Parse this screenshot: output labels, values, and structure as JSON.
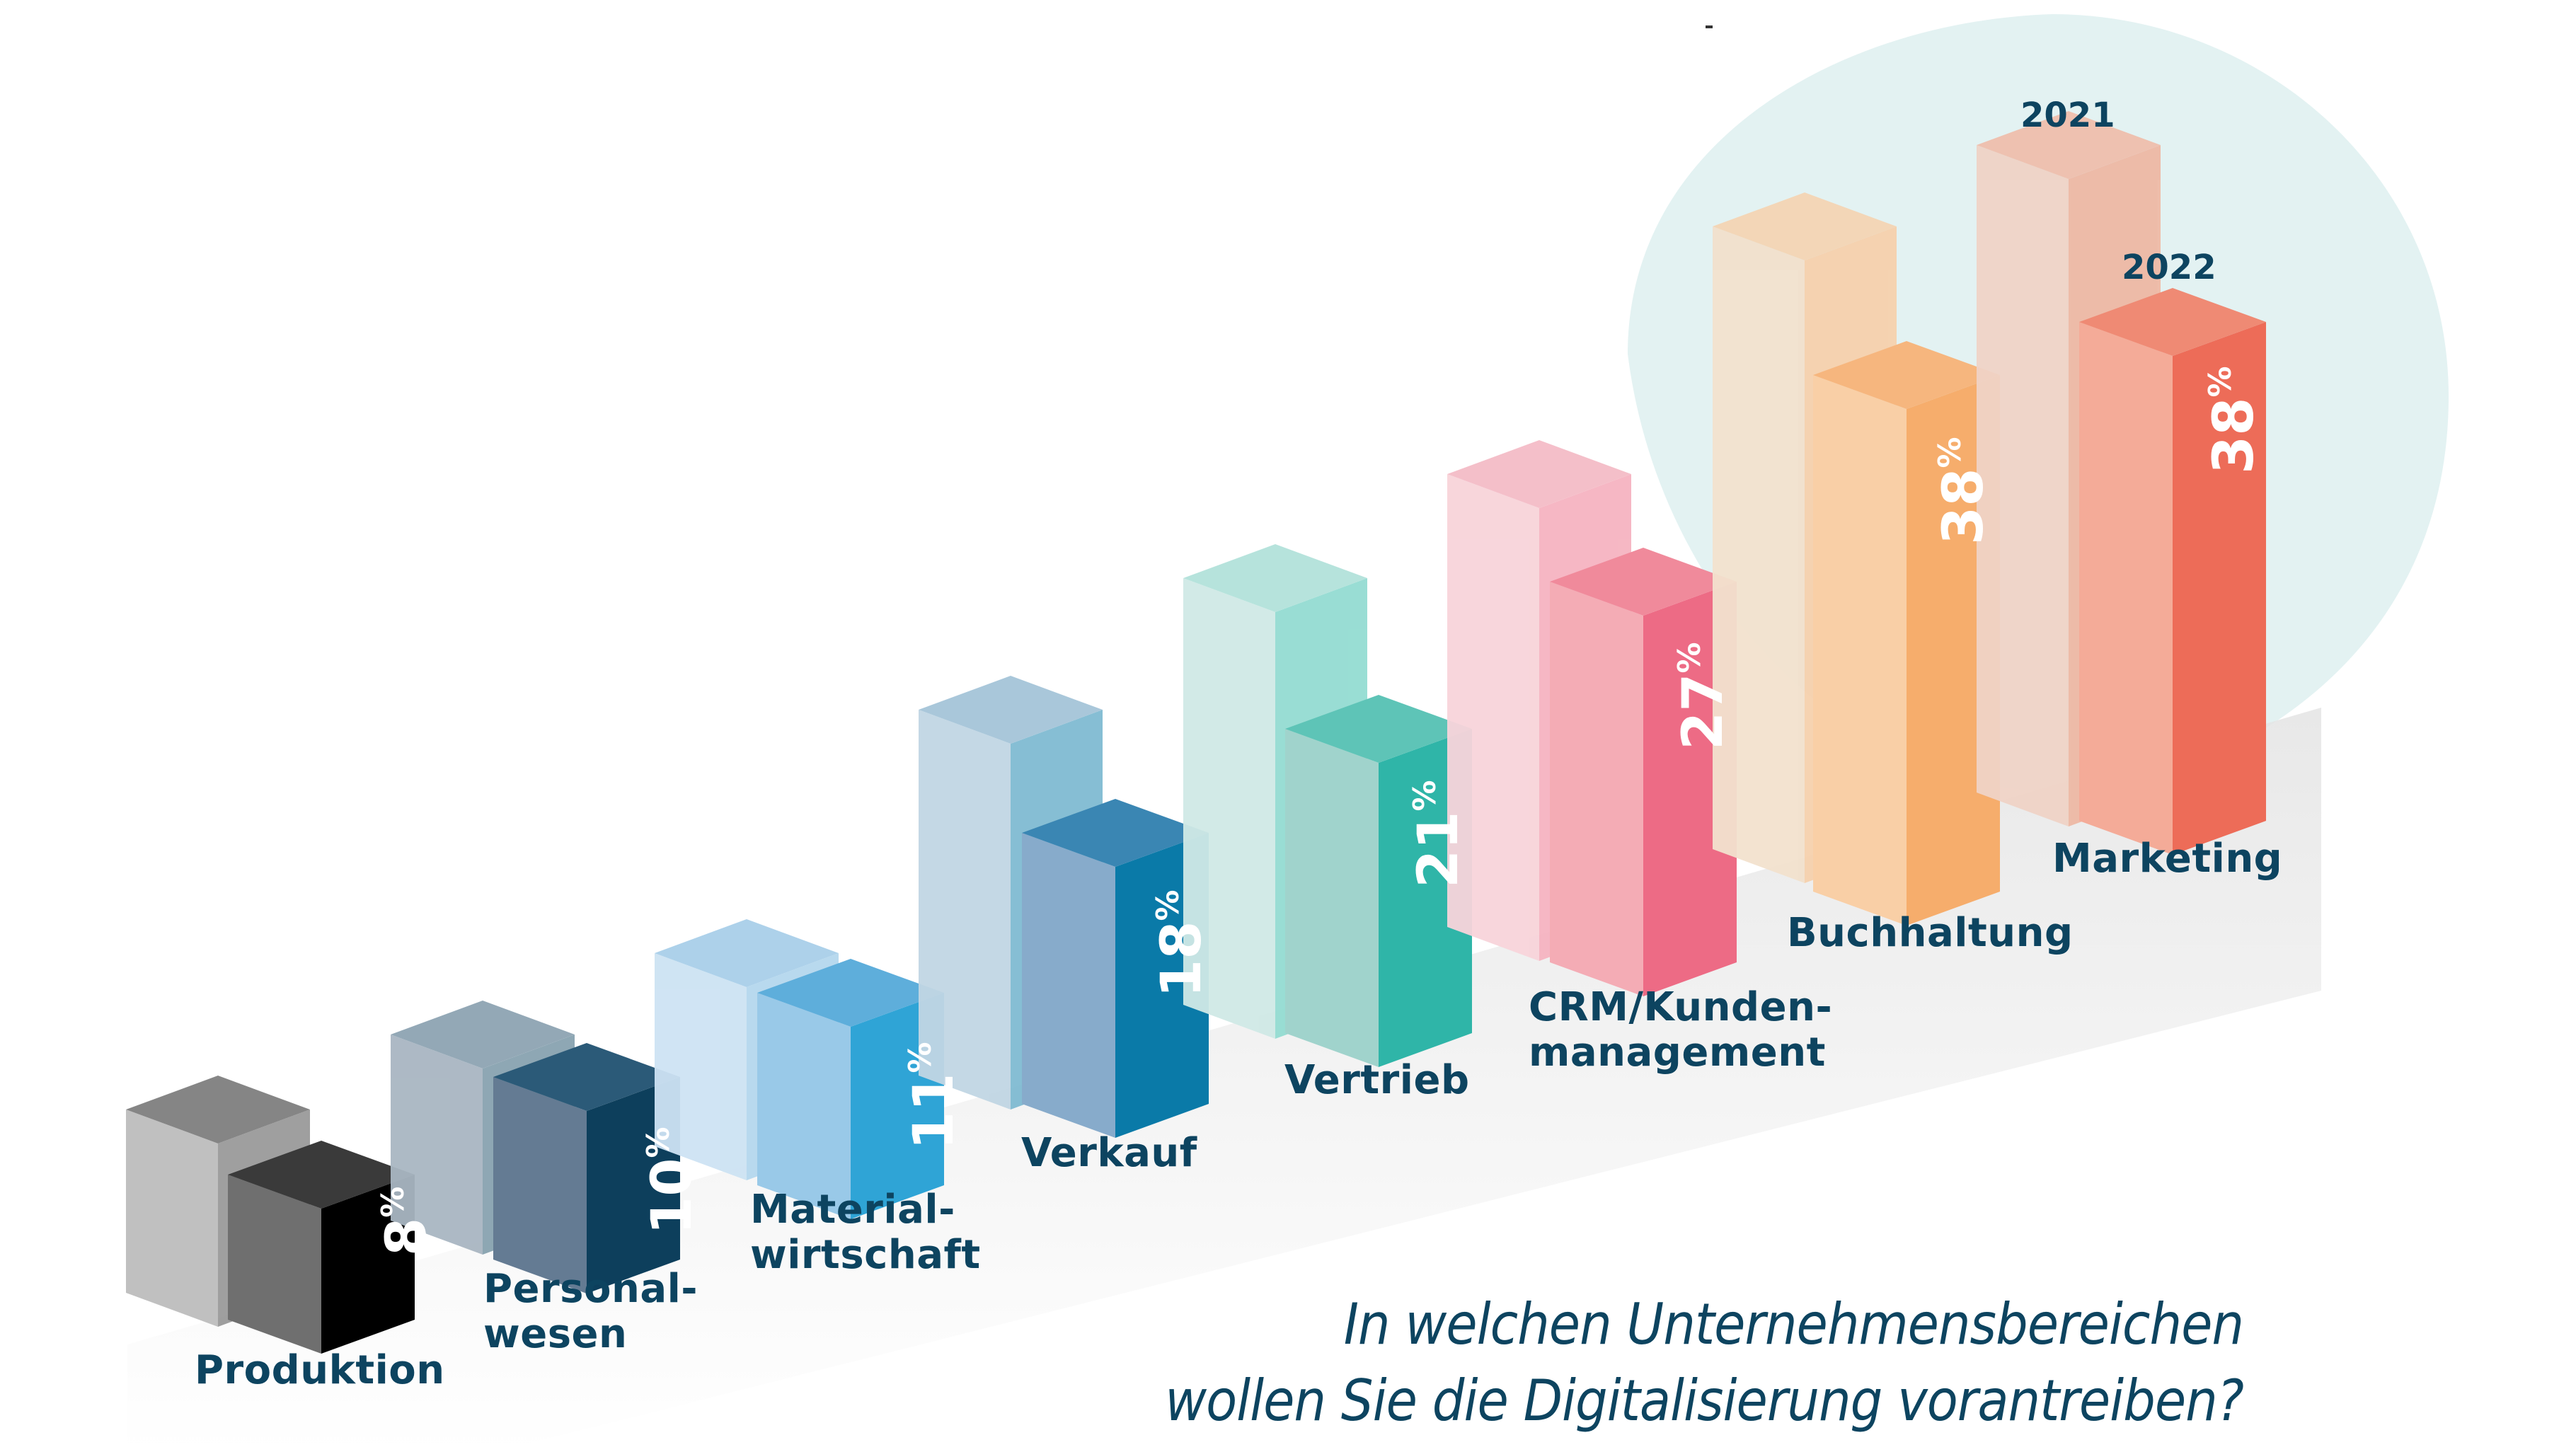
{
  "question": {
    "line1": "In welchen Unternehmensbereichen",
    "line2": "wollen Sie die Digitalisierung vorantreiben?"
  },
  "legend": {
    "year_2021": "2021",
    "year_2022": "2022"
  },
  "categories": [
    {
      "label": "Produktion",
      "value_2022": "8",
      "unit": "%",
      "color_front": "#6f6f6f",
      "color_side": "#000000",
      "color_top": "#3a3a3a",
      "ghost_front": "#bdbdbd",
      "ghost_side": "#9a9a9a",
      "ghost_top": "#7f7f7f"
    },
    {
      "label": "Personal-\nwesen",
      "value_2022": "10",
      "unit": "%",
      "color_front": "#647b93",
      "color_side": "#0d3f5c",
      "color_top": "#2b5a78",
      "ghost_front": "#a9b6c2",
      "ghost_side": "#88a3b0",
      "ghost_top": "#8ea4b3"
    },
    {
      "label": "Material-\nwirtschaft",
      "value_2022": "11",
      "unit": "%",
      "color_front": "#99c9e8",
      "color_side": "#2fa4d6",
      "color_top": "#5eaedb",
      "ghost_front": "#cde3f3",
      "ghost_side": "#b5d8ee",
      "ghost_top": "#a9cfe9"
    },
    {
      "label": "Verkauf",
      "value_2022": "18",
      "unit": "%",
      "color_front": "#87abcb",
      "color_side": "#0a7aa8",
      "color_top": "#3a86b3",
      "ghost_front": "#c1d6e4",
      "ghost_side": "#80bbd2",
      "ghost_top": "#a5c5d9"
    },
    {
      "label": "Vertrieb",
      "value_2022": "21",
      "unit": "%",
      "color_front": "#a0d3cc",
      "color_side": "#2fb5a8",
      "color_top": "#5ec4b7",
      "ghost_front": "#d0e9e6",
      "ghost_side": "#94dcd2",
      "ghost_top": "#b3e2db"
    },
    {
      "label": "CRM/Kunden-\nmanagement",
      "value_2022": "27",
      "unit": "%",
      "color_front": "#f4acb5",
      "color_side": "#ed6b85",
      "color_top": "#f08a9b",
      "ghost_front": "#f8d4da",
      "ghost_side": "#f6b4c1",
      "ghost_top": "#f4bcc7"
    },
    {
      "label": "Buchhaltung",
      "value_2022": "38",
      "unit": "%",
      "color_front": "#f9cfa6",
      "color_side": "#f6ad6c",
      "color_top": "#f6b67e",
      "ghost_front": "#f2e1cd",
      "ghost_side": "#f6d1ad",
      "ghost_top": "#f4d5b4"
    },
    {
      "label": "Marketing",
      "value_2022": "38",
      "unit": "%",
      "color_front": "#f4ab98",
      "color_side": "#ed6c58",
      "color_top": "#ef8a74",
      "ghost_front": "#efd3c6",
      "ghost_side": "#eeb9a5",
      "ghost_top": "#efbfad"
    }
  ],
  "colors": {
    "text_dark": "#0d4460",
    "blob": "#e3f2f2",
    "floor": "#ececec"
  },
  "chart_data": {
    "type": "bar",
    "title": "In welchen Unternehmensbereichen wollen Sie die Digitalisierung vorantreiben?",
    "xlabel": "",
    "ylabel": "",
    "categories": [
      "Produktion",
      "Personalwesen",
      "Materialwirtschaft",
      "Verkauf",
      "Vertrieb",
      "CRM/Kundenmanagement",
      "Buchhaltung",
      "Marketing"
    ],
    "series": [
      {
        "name": "2021",
        "values": [
          null,
          null,
          null,
          null,
          null,
          null,
          null,
          null
        ],
        "note": "ghost bars, values not labeled"
      },
      {
        "name": "2022",
        "values": [
          8,
          10,
          11,
          18,
          21,
          27,
          38,
          38
        ]
      }
    ],
    "unit": "%",
    "legend": [
      "2021",
      "2022"
    ],
    "grid": false,
    "style": "3D isometric bars"
  }
}
